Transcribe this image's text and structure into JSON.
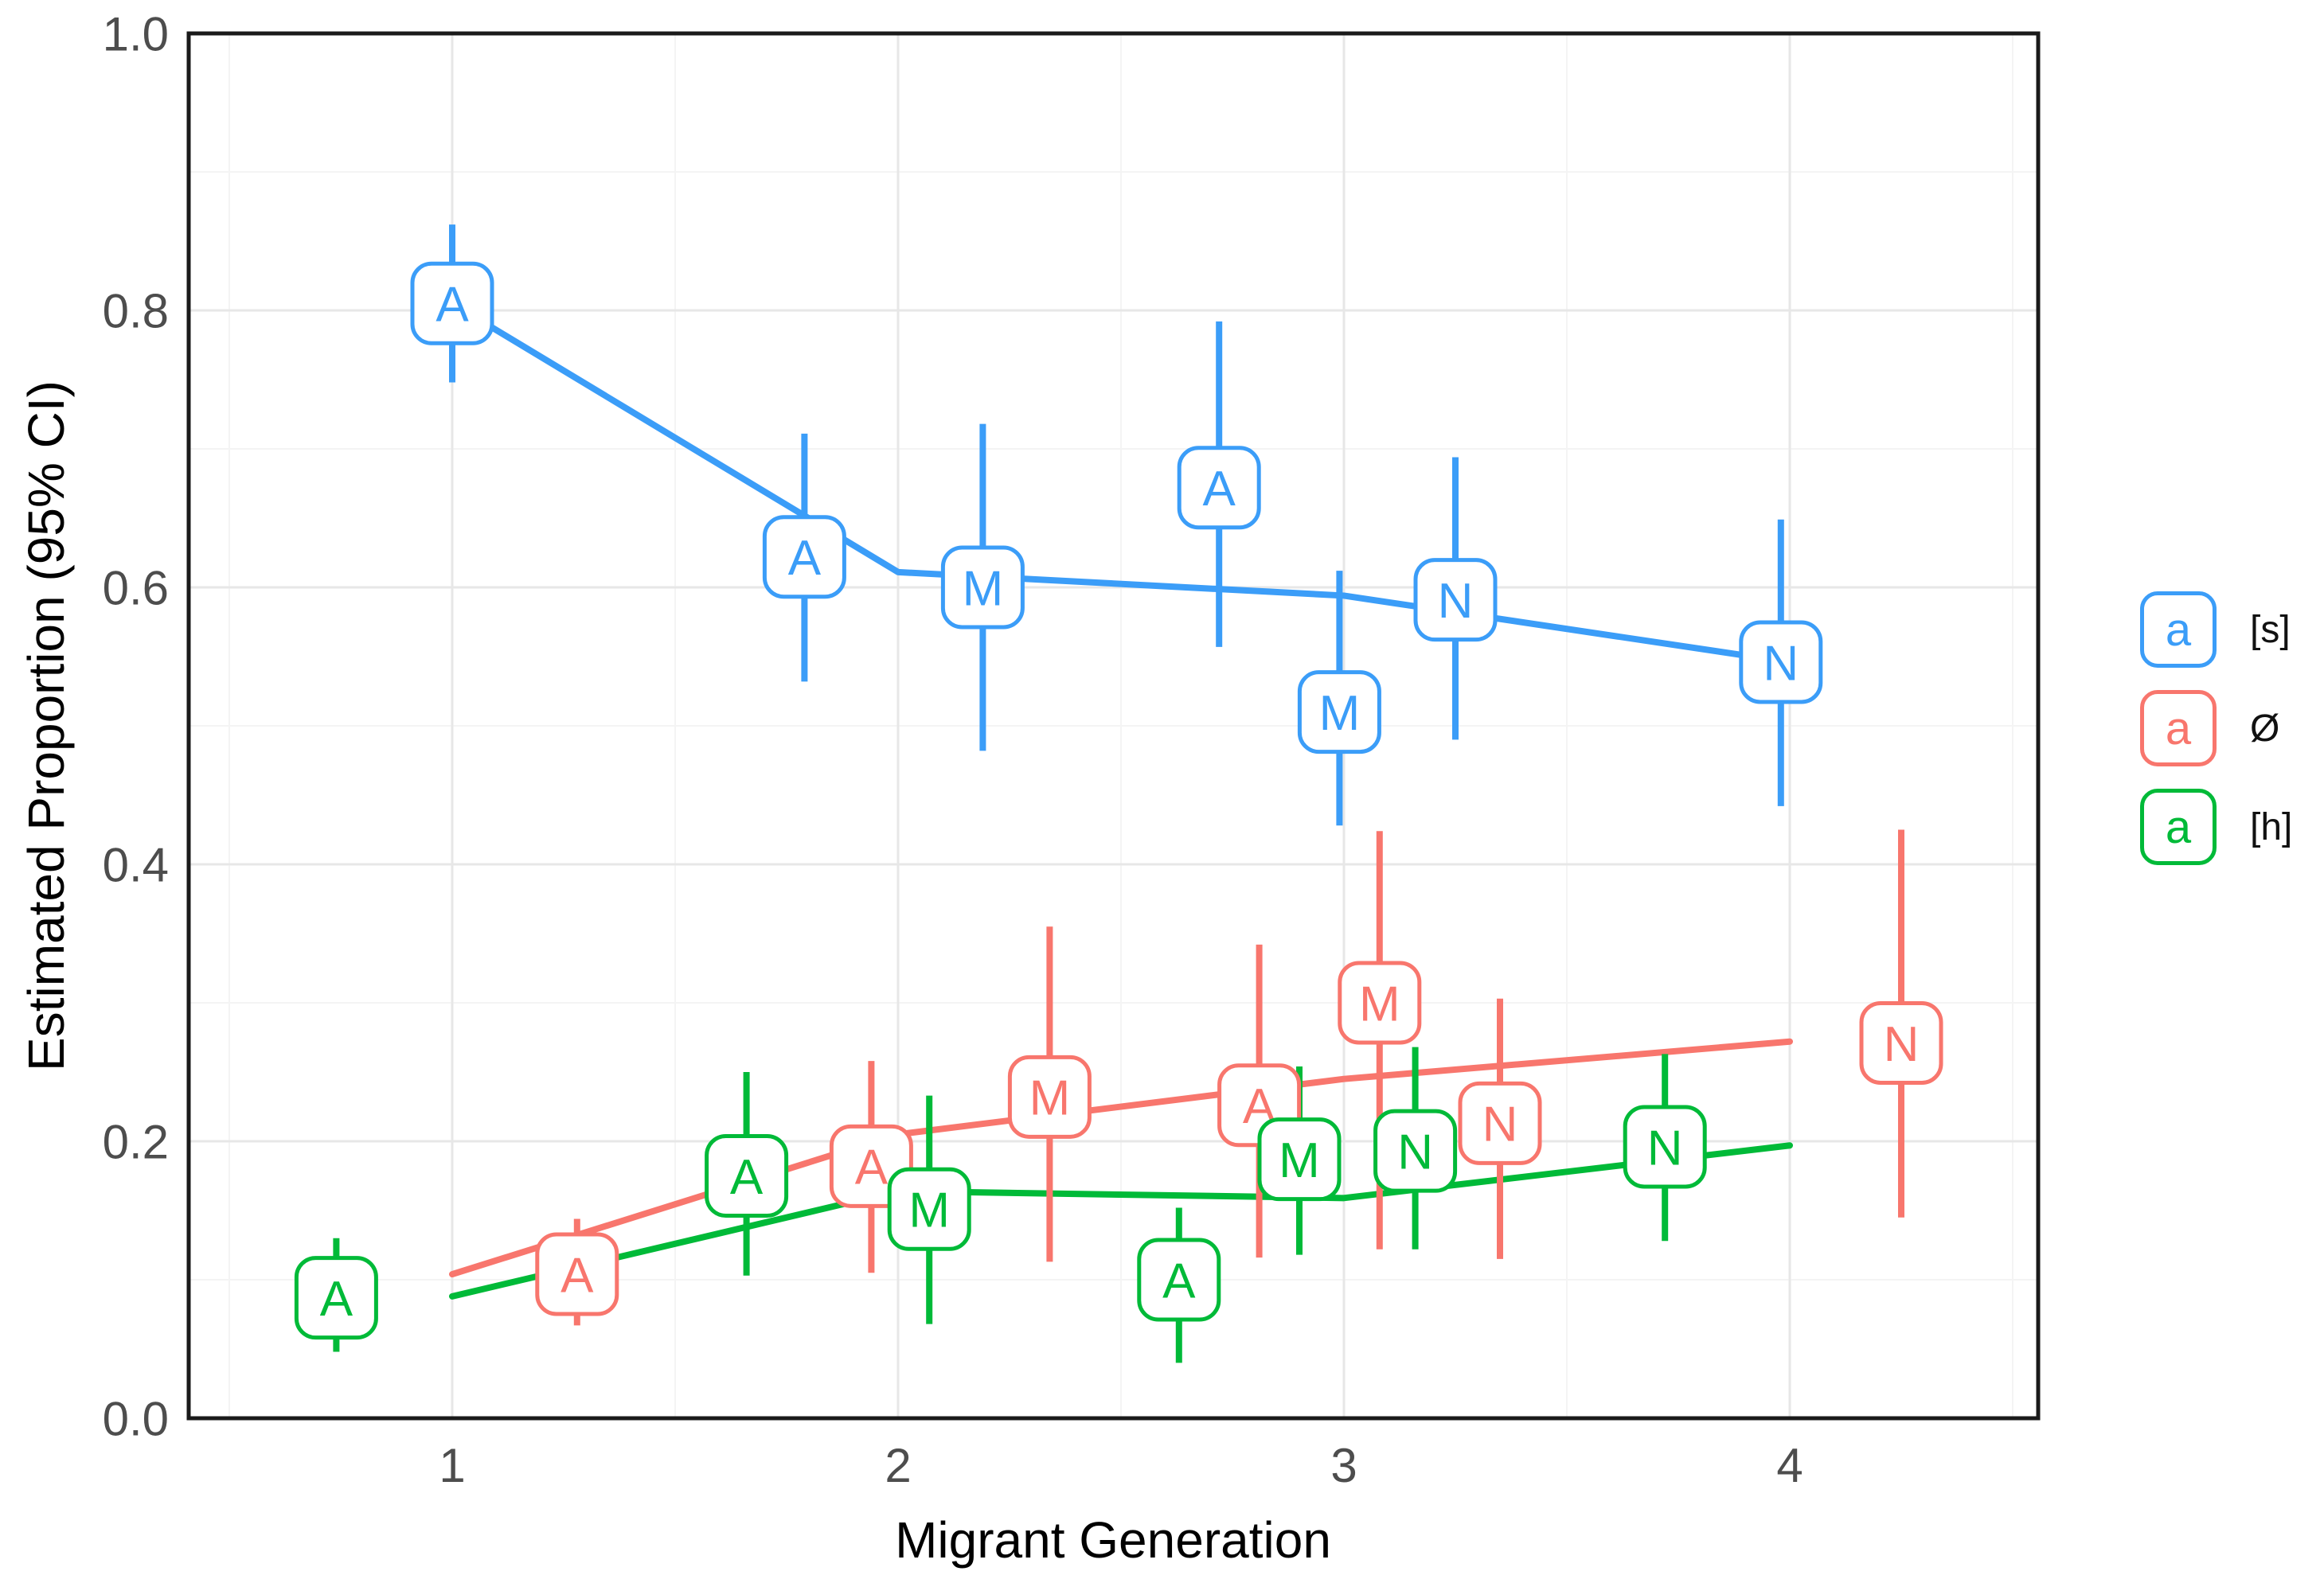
{
  "figure": {
    "y_axis_title": "Estimated Proportion (95% CI)",
    "x_axis_title": "Migrant Generation"
  },
  "legend": {
    "key_letter": "a",
    "items": [
      {
        "label": "[s]",
        "color": "#3B9DF8"
      },
      {
        "label": "Ø",
        "color": "#F8766D"
      },
      {
        "label": "[h]",
        "color": "#00BA38"
      }
    ]
  },
  "chart_data": {
    "type": "scatter",
    "title": "",
    "xlabel": "Migrant Generation",
    "ylabel": "Estimated Proportion (95% CI)",
    "xlim": [
      0.41,
      4.56
    ],
    "ylim": [
      0.0,
      1.0
    ],
    "grid": "on",
    "legend_position": "right",
    "x_ticks": [
      {
        "value": 1,
        "label": "1"
      },
      {
        "value": 2,
        "label": "2"
      },
      {
        "value": 3,
        "label": "3"
      },
      {
        "value": 4,
        "label": "4"
      }
    ],
    "y_ticks": [
      {
        "value": 1.0,
        "label": "1.0"
      },
      {
        "value": 0.8,
        "label": "0.8"
      },
      {
        "value": 0.6,
        "label": "0.6"
      },
      {
        "value": 0.4,
        "label": "0.4"
      },
      {
        "value": 0.2,
        "label": "0.2"
      },
      {
        "value": 0.0,
        "label": "0.0"
      }
    ],
    "y_minor_gridlines": [
      0.1,
      0.3,
      0.5,
      0.7,
      0.9
    ],
    "x_minor_gridlines": [
      0.5,
      1.5,
      2.5,
      3.5,
      4.5
    ],
    "series": [
      {
        "name": "Ø",
        "color": "#F8766D",
        "trend_x": [
          1,
          2,
          3,
          4
        ],
        "trend_y": [
          0.104,
          0.205,
          0.245,
          0.272
        ],
        "points": [
          {
            "label": "A",
            "x": 1.28,
            "y": 0.104,
            "lo": 0.067,
            "hi": 0.144
          },
          {
            "label": "A",
            "x": 1.94,
            "y": 0.182,
            "lo": 0.105,
            "hi": 0.258
          },
          {
            "label": "M",
            "x": 2.34,
            "y": 0.232,
            "lo": 0.113,
            "hi": 0.355
          },
          {
            "label": "A",
            "x": 2.81,
            "y": 0.226,
            "lo": 0.116,
            "hi": 0.342
          },
          {
            "label": "M",
            "x": 3.08,
            "y": 0.3,
            "lo": 0.122,
            "hi": 0.424
          },
          {
            "label": "N",
            "x": 3.35,
            "y": 0.213,
            "lo": 0.115,
            "hi": 0.303
          },
          {
            "label": "N",
            "x": 4.25,
            "y": 0.271,
            "lo": 0.145,
            "hi": 0.425
          }
        ]
      },
      {
        "name": "[h]",
        "color": "#00BA38",
        "trend_x": [
          1,
          2,
          3,
          4
        ],
        "trend_y": [
          0.088,
          0.164,
          0.159,
          0.197
        ],
        "points": [
          {
            "label": "A",
            "x": 0.74,
            "y": 0.087,
            "lo": 0.048,
            "hi": 0.13
          },
          {
            "label": "A",
            "x": 1.66,
            "y": 0.175,
            "lo": 0.103,
            "hi": 0.25
          },
          {
            "label": "M",
            "x": 2.07,
            "y": 0.151,
            "lo": 0.068,
            "hi": 0.233
          },
          {
            "label": "A",
            "x": 2.63,
            "y": 0.1,
            "lo": 0.04,
            "hi": 0.152
          },
          {
            "label": "M",
            "x": 2.9,
            "y": 0.187,
            "lo": 0.118,
            "hi": 0.254
          },
          {
            "label": "N",
            "x": 3.16,
            "y": 0.193,
            "lo": 0.122,
            "hi": 0.268
          },
          {
            "label": "N",
            "x": 3.72,
            "y": 0.196,
            "lo": 0.128,
            "hi": 0.263
          }
        ]
      },
      {
        "name": "[s]",
        "color": "#3B9DF8",
        "trend_x": [
          1,
          2,
          3,
          4
        ],
        "trend_y": [
          0.805,
          0.611,
          0.594,
          0.546
        ],
        "points": [
          {
            "label": "A",
            "x": 1.0,
            "y": 0.805,
            "lo": 0.748,
            "hi": 0.862
          },
          {
            "label": "A",
            "x": 1.79,
            "y": 0.622,
            "lo": 0.532,
            "hi": 0.711
          },
          {
            "label": "M",
            "x": 2.19,
            "y": 0.6,
            "lo": 0.482,
            "hi": 0.718
          },
          {
            "label": "A",
            "x": 2.72,
            "y": 0.672,
            "lo": 0.557,
            "hi": 0.792
          },
          {
            "label": "M",
            "x": 2.99,
            "y": 0.51,
            "lo": 0.428,
            "hi": 0.612
          },
          {
            "label": "N",
            "x": 3.25,
            "y": 0.591,
            "lo": 0.49,
            "hi": 0.694
          },
          {
            "label": "N",
            "x": 3.98,
            "y": 0.546,
            "lo": 0.442,
            "hi": 0.649
          }
        ]
      }
    ]
  },
  "style": {
    "major_grid_color": "#E7E7E7",
    "minor_grid_color": "#F4F4F4",
    "panel_border_color": "#1a1a1a",
    "tick_label_color": "#4D4D4D"
  }
}
